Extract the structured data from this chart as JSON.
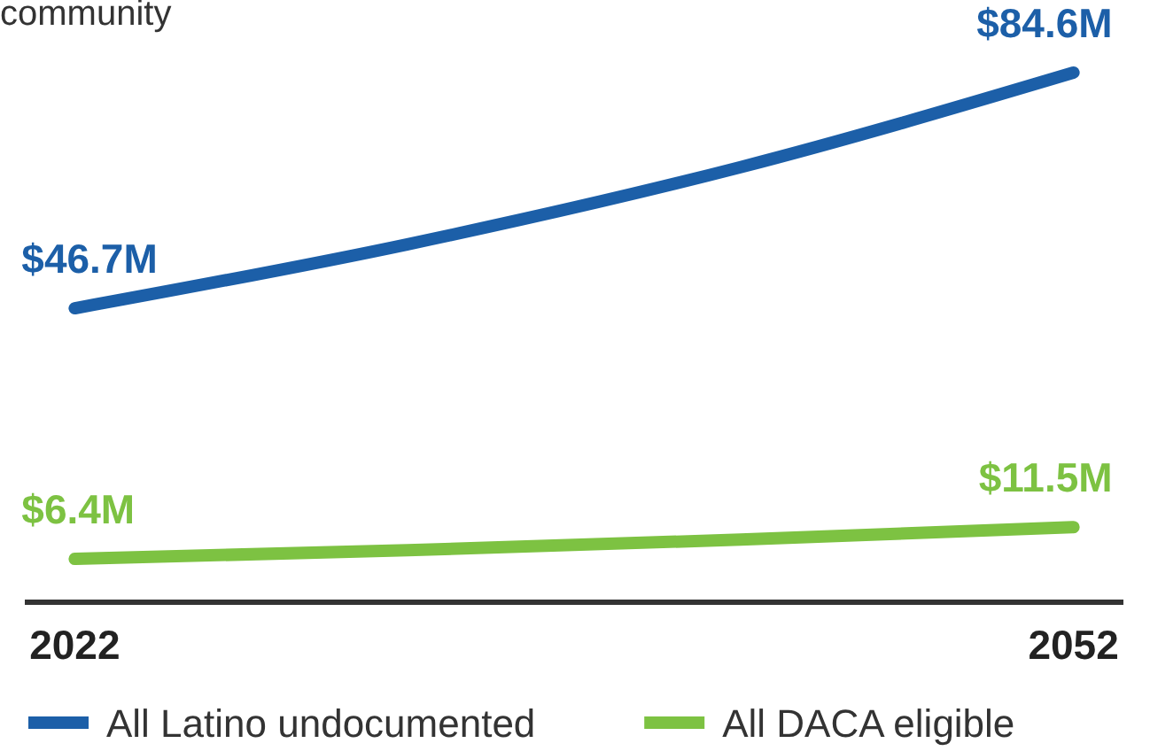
{
  "chart_data": {
    "type": "line",
    "title": "community",
    "x": [
      2022,
      2032,
      2042,
      2052
    ],
    "xlim": [
      2020.5,
      2053.5
    ],
    "xticks": [
      2022,
      2052
    ],
    "tick_labels": "x",
    "legend": "bottom",
    "marker": "none",
    "line_style": "solid",
    "series": [
      {
        "name": "All Latino undocumented",
        "color": "#1c5fa8",
        "values": [
          46.7,
          57,
          69.4,
          84.6
        ],
        "value_labels": [
          "$46.7M",
          null,
          null,
          "$84.6M"
        ]
      },
      {
        "name": "All DACA eligible",
        "color": "#7dc242",
        "values": [
          6.4,
          7.8,
          9.5,
          11.5
        ],
        "value_labels": [
          "$6.4M",
          null,
          null,
          "$11.5M"
        ]
      }
    ]
  }
}
